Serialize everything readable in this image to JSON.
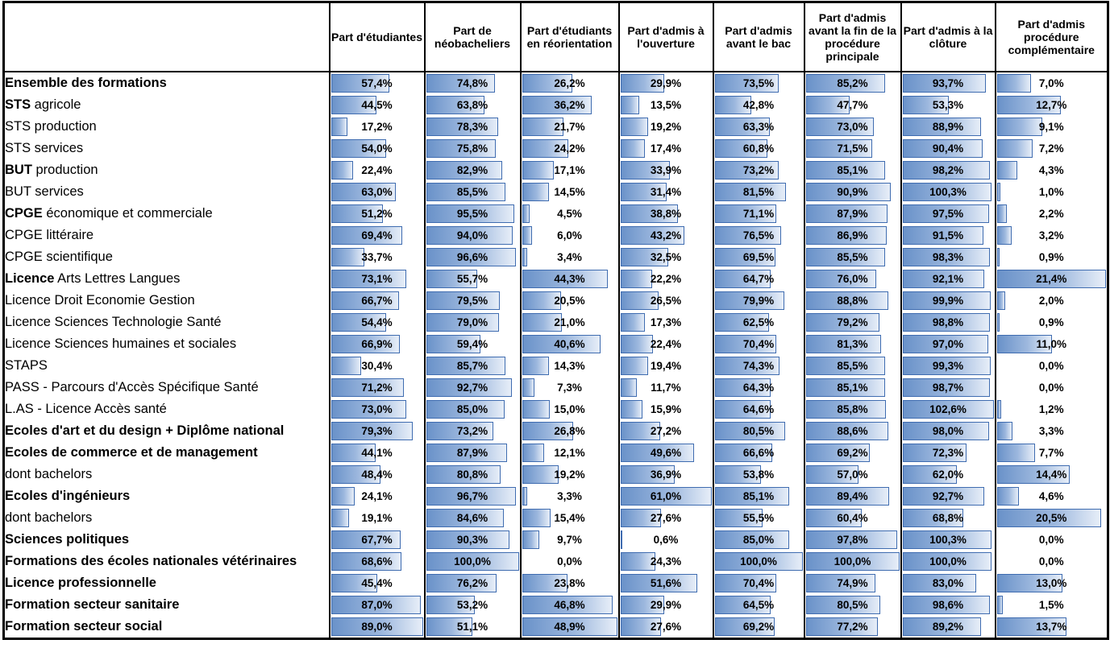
{
  "colors": {
    "bar_fill_start": "#6a92c9",
    "bar_fill_end": "#e7eef8",
    "bar_border": "#3f6cb0",
    "grid": "#000000",
    "text": "#000000"
  },
  "chart_data": {
    "type": "table",
    "value_format": "percent_french_comma_1_decimal",
    "bar_scaling": "per_column_zero_to_max",
    "columns": [
      "Part d'étudiantes",
      "Part de néobacheliers",
      "Part d'étudiants en réorientation",
      "Part d'admis à l'ouverture",
      "Part d'admis avant le bac",
      "Part d'admis avant la fin de la procédure principale",
      "Part d'admis à la clôture",
      "Part d'admis procédure complémentaire"
    ],
    "column_max": [
      89.0,
      100.0,
      48.9,
      61.0,
      100.0,
      100.0,
      102.6,
      21.4
    ],
    "rows": [
      {
        "label_bold": "Ensemble des formations",
        "label_rest": "",
        "values": [
          57.4,
          74.8,
          26.2,
          29.9,
          73.5,
          85.2,
          93.7,
          7.0
        ]
      },
      {
        "label_bold": "STS",
        "label_rest": " agricole",
        "values": [
          44.5,
          63.8,
          36.2,
          13.5,
          42.8,
          47.7,
          53.3,
          12.7
        ]
      },
      {
        "label_bold": "",
        "label_rest": "STS production",
        "values": [
          17.2,
          78.3,
          21.7,
          19.2,
          63.3,
          73.0,
          88.9,
          9.1
        ]
      },
      {
        "label_bold": "",
        "label_rest": "STS services",
        "values": [
          54.0,
          75.8,
          24.2,
          17.4,
          60.8,
          71.5,
          90.4,
          7.2
        ]
      },
      {
        "label_bold": "BUT",
        "label_rest": " production",
        "values": [
          22.4,
          82.9,
          17.1,
          33.9,
          73.2,
          85.1,
          98.2,
          4.3
        ]
      },
      {
        "label_bold": "",
        "label_rest": "BUT services",
        "values": [
          63.0,
          85.5,
          14.5,
          31.4,
          81.5,
          90.9,
          100.3,
          1.0
        ]
      },
      {
        "label_bold": "CPGE",
        "label_rest": " économique et commerciale",
        "values": [
          51.2,
          95.5,
          4.5,
          38.8,
          71.1,
          87.9,
          97.5,
          2.2
        ]
      },
      {
        "label_bold": "",
        "label_rest": "CPGE littéraire",
        "values": [
          69.4,
          94.0,
          6.0,
          43.2,
          76.5,
          86.9,
          91.5,
          3.2
        ]
      },
      {
        "label_bold": "",
        "label_rest": "CPGE scientifique",
        "values": [
          33.7,
          96.6,
          3.4,
          32.5,
          69.5,
          85.5,
          98.3,
          0.9
        ]
      },
      {
        "label_bold": "Licence",
        "label_rest": " Arts Lettres Langues",
        "values": [
          73.1,
          55.7,
          44.3,
          22.2,
          64.7,
          76.0,
          92.1,
          21.4
        ]
      },
      {
        "label_bold": "",
        "label_rest": "Licence Droit Economie Gestion",
        "values": [
          66.7,
          79.5,
          20.5,
          26.5,
          79.9,
          88.8,
          99.9,
          2.0
        ]
      },
      {
        "label_bold": "",
        "label_rest": "Licence Sciences Technologie Santé",
        "values": [
          54.4,
          79.0,
          21.0,
          17.3,
          62.5,
          79.2,
          98.8,
          0.9
        ]
      },
      {
        "label_bold": "",
        "label_rest": "Licence Sciences humaines et sociales",
        "values": [
          66.9,
          59.4,
          40.6,
          22.4,
          70.4,
          81.3,
          97.0,
          11.0
        ]
      },
      {
        "label_bold": "",
        "label_rest": "STAPS",
        "values": [
          30.4,
          85.7,
          14.3,
          19.4,
          74.3,
          85.5,
          99.3,
          0.0
        ]
      },
      {
        "label_bold": "",
        "label_rest": "PASS - Parcours d'Accès Spécifique Santé",
        "values": [
          71.2,
          92.7,
          7.3,
          11.7,
          64.3,
          85.1,
          98.7,
          0.0
        ]
      },
      {
        "label_bold": "",
        "label_rest": "L.AS - Licence Accès santé",
        "values": [
          73.0,
          85.0,
          15.0,
          15.9,
          64.6,
          85.8,
          102.6,
          1.2
        ]
      },
      {
        "label_bold": "Ecoles d'art et du design + Diplôme national",
        "label_rest": "",
        "values": [
          79.3,
          73.2,
          26.8,
          27.2,
          80.5,
          88.6,
          98.0,
          3.3
        ]
      },
      {
        "label_bold": "Ecoles de commerce et de management",
        "label_rest": "",
        "values": [
          44.1,
          87.9,
          12.1,
          49.6,
          66.6,
          69.2,
          72.3,
          7.7
        ]
      },
      {
        "label_bold": "",
        "label_rest": "dont bachelors",
        "values": [
          48.4,
          80.8,
          19.2,
          36.9,
          53.8,
          57.0,
          62.0,
          14.4
        ]
      },
      {
        "label_bold": "Ecoles d'ingénieurs",
        "label_rest": "",
        "values": [
          24.1,
          96.7,
          3.3,
          61.0,
          85.1,
          89.4,
          92.7,
          4.6
        ]
      },
      {
        "label_bold": "",
        "label_rest": "dont bachelors",
        "values": [
          19.1,
          84.6,
          15.4,
          27.6,
          55.5,
          60.4,
          68.8,
          20.5
        ]
      },
      {
        "label_bold": "Sciences politiques",
        "label_rest": "",
        "values": [
          67.7,
          90.3,
          9.7,
          0.6,
          85.0,
          97.8,
          100.3,
          0.0
        ]
      },
      {
        "label_bold": "Formations des écoles nationales vétérinaires",
        "label_rest": "",
        "values": [
          68.6,
          100.0,
          0.0,
          24.3,
          100.0,
          100.0,
          100.0,
          0.0
        ]
      },
      {
        "label_bold": "Licence professionnelle",
        "label_rest": "",
        "values": [
          45.4,
          76.2,
          23.8,
          51.6,
          70.4,
          74.9,
          83.0,
          13.0
        ]
      },
      {
        "label_bold": "Formation secteur sanitaire",
        "label_rest": "",
        "values": [
          87.0,
          53.2,
          46.8,
          29.9,
          64.5,
          80.5,
          98.6,
          1.5
        ]
      },
      {
        "label_bold": "Formation secteur social",
        "label_rest": "",
        "values": [
          89.0,
          51.1,
          48.9,
          27.6,
          69.2,
          77.2,
          89.2,
          13.7
        ]
      }
    ]
  }
}
